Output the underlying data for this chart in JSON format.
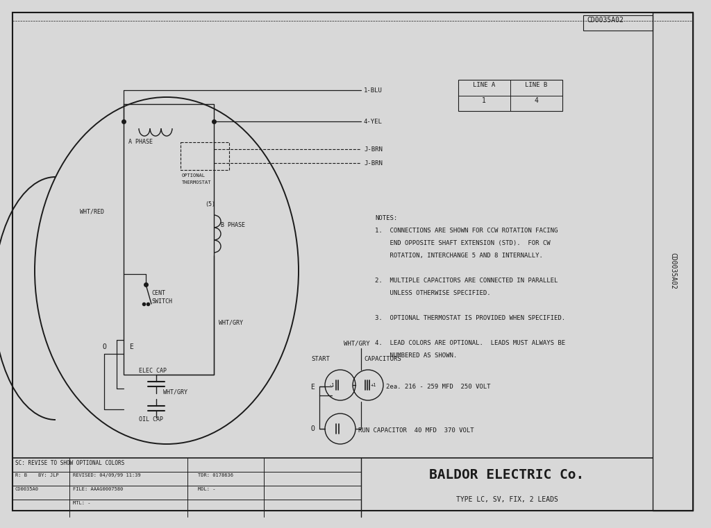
{
  "bg_color": "#d8d8d8",
  "paper_color": "#f2f0e8",
  "line_color": "#1a1a1a",
  "company": "BALDOR ELECTRIC Co.",
  "type_line": "TYPE LC, SV, FIX, 2 LEADS",
  "drawing_number": "CD0035A02"
}
